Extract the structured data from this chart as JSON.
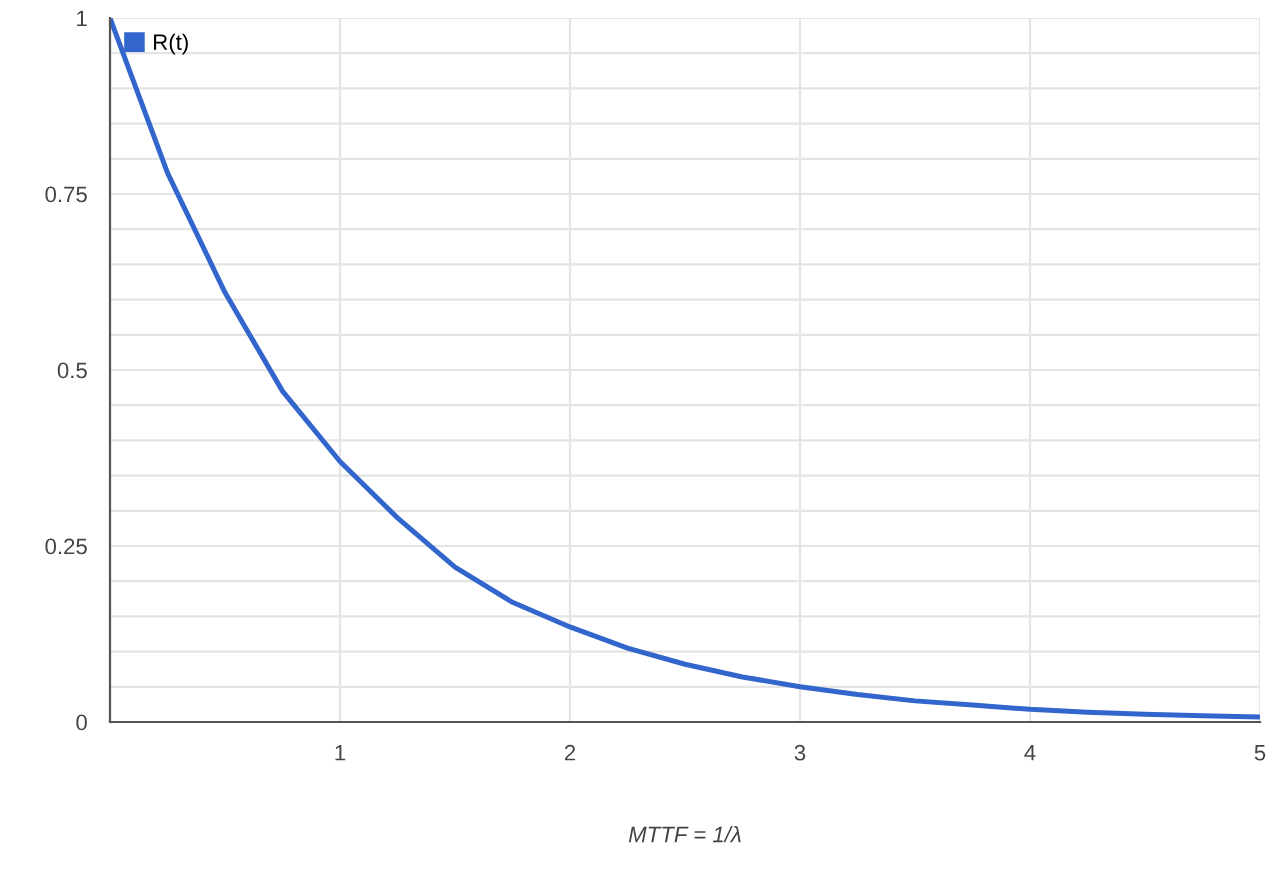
{
  "chart_data": {
    "type": "line",
    "xlabel": "MTTF = 1/λ",
    "legend": "top left",
    "grid": true,
    "xlim": [
      0,
      5
    ],
    "xticks": [
      1,
      2,
      3,
      4,
      5
    ],
    "ylim": [
      0,
      1
    ],
    "yticks": [
      0,
      {
        "value": 0.05,
        "label": null
      },
      {
        "value": 0.1,
        "label": null
      },
      {
        "value": 0.15,
        "label": null
      },
      {
        "value": 0.2,
        "label": null
      },
      0.25,
      {
        "value": 0.3,
        "label": null
      },
      {
        "value": 0.35,
        "label": null
      },
      {
        "value": 0.4,
        "label": null
      },
      {
        "value": 0.45,
        "label": null
      },
      0.5,
      {
        "value": 0.55,
        "label": null
      },
      {
        "value": 0.6,
        "label": null
      },
      {
        "value": 0.65,
        "label": null
      },
      {
        "value": 0.7,
        "label": null
      },
      0.75,
      {
        "value": 0.8,
        "label": null
      },
      {
        "value": 0.85,
        "label": null
      },
      {
        "value": 0.9,
        "label": null
      },
      {
        "value": 0.95,
        "label": null
      },
      1
    ],
    "series": [
      {
        "name": "R(t)",
        "color": "#3366cc",
        "x": [
          0,
          0.25,
          0.5,
          0.75,
          1,
          1.25,
          1.5,
          1.75,
          2,
          2.25,
          2.5,
          2.75,
          3,
          3.25,
          3.5,
          3.75,
          4,
          4.25,
          4.5,
          4.75,
          5
        ],
        "values": [
          1,
          0.78,
          0.61,
          0.47,
          0.37,
          0.29,
          0.22,
          0.17,
          0.135,
          0.105,
          0.082,
          0.064,
          0.05,
          0.039,
          0.03,
          0.024,
          0.018,
          0.014,
          0.011,
          0.009,
          0.007
        ]
      }
    ]
  }
}
